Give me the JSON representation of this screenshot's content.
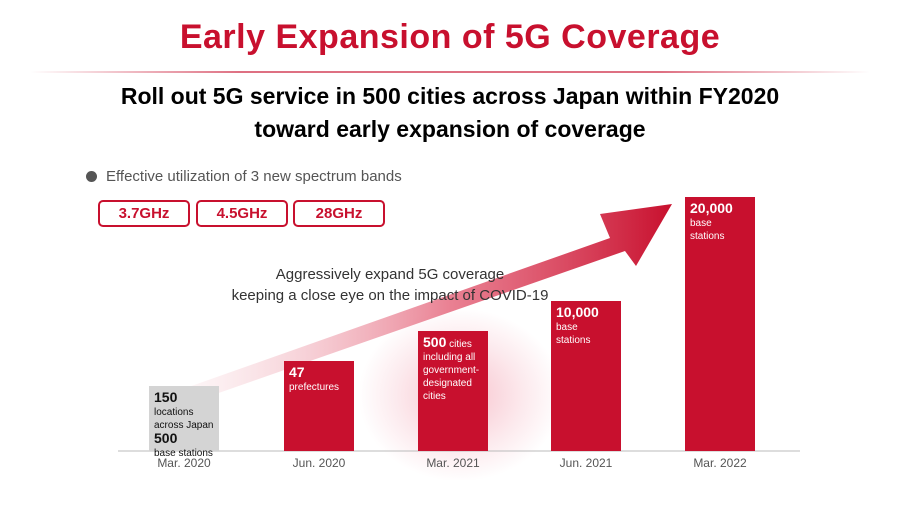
{
  "title": "Early Expansion of 5G Coverage",
  "subtitle_line1": "Roll out 5G service in 500 cities across Japan within FY2020",
  "subtitle_line2": "toward early expansion of coverage",
  "bullet": "Effective utilization of 3 new spectrum bands",
  "bands": [
    "3.7GHz",
    "4.5GHz",
    "28GHz"
  ],
  "annotation_line1": "Aggressively expand 5G coverage",
  "annotation_line2": "keeping a close eye on the impact of COVID-19",
  "colors": {
    "accent": "#c8102e",
    "gray_bar": "#d4d4d4",
    "axis": "#bbbbbb"
  },
  "chart_data": {
    "type": "bar",
    "categories": [
      "Mar. 2020",
      "Jun. 2020",
      "Mar. 2021",
      "Jun. 2021",
      "Mar. 2022"
    ],
    "values": [
      500,
      47,
      500,
      10000,
      20000
    ],
    "bar_labels": [
      {
        "value": "150",
        "text": [
          "locations",
          "across Japan"
        ],
        "value2": "500",
        "text2": [
          "base stations"
        ],
        "style": "gray"
      },
      {
        "value": "47",
        "text": [
          "prefectures"
        ],
        "style": "red"
      },
      {
        "value": "500",
        "text": [
          "cities",
          "including all",
          "government-",
          "designated",
          "cities"
        ],
        "style": "red"
      },
      {
        "value": "10,000",
        "text": [
          "base",
          "stations"
        ],
        "style": "red"
      },
      {
        "value": "20,000",
        "text": [
          "base",
          "stations"
        ],
        "style": "red"
      }
    ]
  }
}
